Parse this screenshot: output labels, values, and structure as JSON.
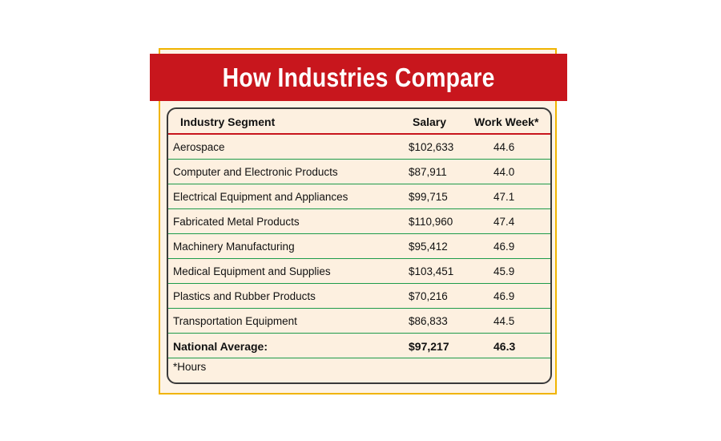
{
  "title": "How Industries Compare",
  "colors": {
    "banner": "#c8161d",
    "frame_border": "#f0b400",
    "row_divider": "#1e9b4a",
    "background": "#fdf0e0"
  },
  "chart_data": {
    "type": "table",
    "title": "How Industries Compare",
    "columns": [
      "Industry Segment",
      "Salary",
      "Work Week*"
    ],
    "rows": [
      {
        "segment": "Aerospace",
        "salary": "$102,633",
        "work_week": "44.6"
      },
      {
        "segment": "Computer and Electronic Products",
        "salary": "$87,911",
        "work_week": "44.0"
      },
      {
        "segment": "Electrical Equipment and Appliances",
        "salary": "$99,715",
        "work_week": "47.1"
      },
      {
        "segment": "Fabricated Metal Products",
        "salary": "$110,960",
        "work_week": "47.4"
      },
      {
        "segment": "Machinery Manufacturing",
        "salary": "$95,412",
        "work_week": "46.9"
      },
      {
        "segment": "Medical Equipment and Supplies",
        "salary": "$103,451",
        "work_week": "45.9"
      },
      {
        "segment": "Plastics and Rubber Products",
        "salary": "$70,216",
        "work_week": "46.9"
      },
      {
        "segment": "Transportation Equipment",
        "salary": "$86,833",
        "work_week": "44.5"
      }
    ],
    "summary": {
      "segment": "National Average:",
      "salary": "$97,217",
      "work_week": "46.3"
    },
    "footnote": "*Hours"
  }
}
